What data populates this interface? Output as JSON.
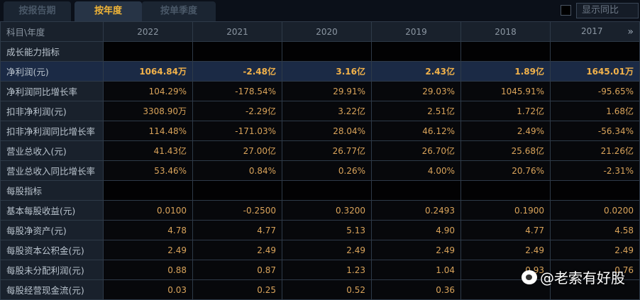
{
  "tabs": [
    {
      "label": "按报告期",
      "active": false
    },
    {
      "label": "按年度",
      "active": true
    },
    {
      "label": "按单季度",
      "active": false
    }
  ],
  "show_yoy_label": "显示同比",
  "header": {
    "label": "科目\\年度",
    "years": [
      "2022",
      "2021",
      "2020",
      "2019",
      "2018",
      "2017"
    ],
    "more_icon": "»"
  },
  "rows": [
    {
      "label": "成长能力指标",
      "section": true,
      "values": [
        "",
        "",
        "",
        "",
        "",
        ""
      ]
    },
    {
      "label": "净利润(元)",
      "highlight": true,
      "values": [
        "1064.84万",
        "-2.48亿",
        "3.16亿",
        "2.43亿",
        "1.89亿",
        "1645.01万"
      ]
    },
    {
      "label": "净利润同比增长率",
      "values": [
        "104.29%",
        "-178.54%",
        "29.91%",
        "29.03%",
        "1045.91%",
        "-95.65%"
      ]
    },
    {
      "label": "扣非净利润(元)",
      "values": [
        "3308.90万",
        "-2.29亿",
        "3.22亿",
        "2.51亿",
        "1.72亿",
        "1.68亿"
      ]
    },
    {
      "label": "扣非净利润同比增长率",
      "values": [
        "114.48%",
        "-171.03%",
        "28.04%",
        "46.12%",
        "2.49%",
        "-56.34%"
      ]
    },
    {
      "label": "营业总收入(元)",
      "values": [
        "41.43亿",
        "27.00亿",
        "26.77亿",
        "26.70亿",
        "25.68亿",
        "21.26亿"
      ]
    },
    {
      "label": "营业总收入同比增长率",
      "values": [
        "53.46%",
        "0.84%",
        "0.26%",
        "4.00%",
        "20.76%",
        "-2.31%"
      ]
    },
    {
      "label": "每股指标",
      "section": true,
      "values": [
        "",
        "",
        "",
        "",
        "",
        ""
      ]
    },
    {
      "label": "基本每股收益(元)",
      "values": [
        "0.0100",
        "-0.2500",
        "0.3200",
        "0.2493",
        "0.1900",
        "0.0200"
      ]
    },
    {
      "label": "每股净资产(元)",
      "values": [
        "4.78",
        "4.77",
        "5.13",
        "4.90",
        "4.77",
        "4.58"
      ]
    },
    {
      "label": "每股资本公积金(元)",
      "values": [
        "2.49",
        "2.49",
        "2.49",
        "2.49",
        "2.49",
        "2.49"
      ]
    },
    {
      "label": "每股未分配利润(元)",
      "values": [
        "0.88",
        "0.87",
        "1.23",
        "1.04",
        "0.93",
        "0.76"
      ]
    },
    {
      "label": "每股经营现金流(元)",
      "values": [
        "0.03",
        "0.25",
        "0.52",
        "0.36",
        "",
        ""
      ]
    }
  ],
  "watermark": "@老索有好股"
}
